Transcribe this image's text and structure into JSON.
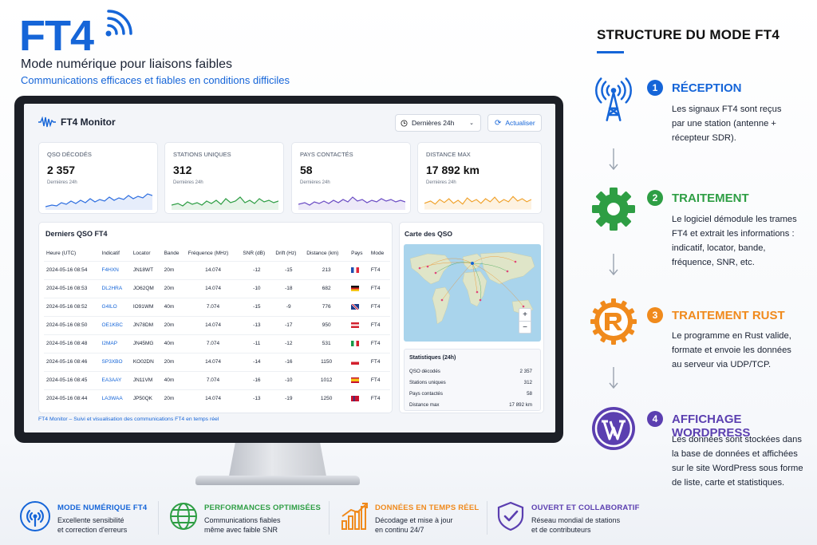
{
  "header": {
    "logo": "FT4",
    "subtitle": "Mode numérique pour liaisons faibles",
    "tagline": "Communications efficaces et fiables en conditions difficiles"
  },
  "structure": {
    "title": "STRUCTURE DU MODE FT4",
    "steps": [
      {
        "num": "1",
        "title": "RÉCEPTION",
        "color": "#1565d8",
        "icon": "antenna-tower-icon",
        "lines": [
          "Les signaux FT4 sont reçus",
          "par une station (antenne +",
          "récepteur SDR)."
        ]
      },
      {
        "num": "2",
        "title": "TRAITEMENT",
        "color": "#2e9e44",
        "icon": "gear-icon",
        "lines": [
          "Le logiciel démodule les trames",
          "FT4 et extrait les informations :",
          "indicatif, locator, bande,",
          "fréquence, SNR, etc."
        ]
      },
      {
        "num": "3",
        "title": "TRAITEMENT RUST",
        "color": "#f08a1c",
        "icon": "rust-logo-icon",
        "lines": [
          "Le programme en Rust valide,",
          "formate et envoie les données",
          "au serveur via UDP/TCP."
        ]
      },
      {
        "num": "4",
        "title": "AFFICHAGE WORDPRESS",
        "color": "#5b3fb0",
        "icon": "wordpress-logo-icon",
        "lines": [
          "Les données sont stockées dans",
          "la base de données et affichées",
          "sur le site WordPress sous forme",
          "de liste, carte et statistiques."
        ]
      }
    ]
  },
  "app": {
    "title": "FT4 Monitor",
    "period": "Dernières 24h",
    "refresh": "Actualiser",
    "kpis": [
      {
        "label": "QSO DÉCODÉS",
        "value": "2 357",
        "sub": "Dernières 24h",
        "color": "#2f6fe0"
      },
      {
        "label": "STATIONS UNIQUES",
        "value": "312",
        "sub": "Dernières 24h",
        "color": "#2e9e44"
      },
      {
        "label": "PAYS CONTACTÉS",
        "value": "58",
        "sub": "Dernières 24h",
        "color": "#6a4bc4"
      },
      {
        "label": "DISTANCE MAX",
        "value": "17 892 km",
        "sub": "Dernières 24h",
        "color": "#f0a12a"
      }
    ],
    "table": {
      "title": "Derniers QSO FT4",
      "columns": [
        "Heure (UTC)",
        "Indicatif",
        "Locator",
        "Bande",
        "Fréquence (MHz)",
        "SNR (dB)",
        "Drift (Hz)",
        "Distance (km)",
        "Pays",
        "Mode"
      ],
      "rows": [
        {
          "time": "2024-05-16 08:54",
          "call": "F4HXN",
          "loc": "JN18WT",
          "band": "20m",
          "freq": "14.074",
          "snr": "-12",
          "drift": "-15",
          "dist": "213",
          "flag": "fr",
          "mode": "FT4"
        },
        {
          "time": "2024-05-16 08:53",
          "call": "DL2HRA",
          "loc": "JO62QM",
          "band": "20m",
          "freq": "14.074",
          "snr": "-10",
          "drift": "-18",
          "dist": "682",
          "flag": "de",
          "mode": "FT4"
        },
        {
          "time": "2024-05-16 08:52",
          "call": "G4ILO",
          "loc": "IO91WM",
          "band": "40m",
          "freq": "7.074",
          "snr": "-15",
          "drift": "-9",
          "dist": "776",
          "flag": "gb",
          "mode": "FT4"
        },
        {
          "time": "2024-05-16 08:50",
          "call": "OE1KBC",
          "loc": "JN78DM",
          "band": "20m",
          "freq": "14.074",
          "snr": "-13",
          "drift": "-17",
          "dist": "950",
          "flag": "at",
          "mode": "FT4"
        },
        {
          "time": "2024-05-16 08:48",
          "call": "I2MAP",
          "loc": "JN45MG",
          "band": "40m",
          "freq": "7.074",
          "snr": "-11",
          "drift": "-12",
          "dist": "531",
          "flag": "it",
          "mode": "FT4"
        },
        {
          "time": "2024-05-16 08:46",
          "call": "SP3XBO",
          "loc": "KO02DN",
          "band": "20m",
          "freq": "14.074",
          "snr": "-14",
          "drift": "-16",
          "dist": "1150",
          "flag": "pl",
          "mode": "FT4"
        },
        {
          "time": "2024-05-16 08:45",
          "call": "EA3AAY",
          "loc": "JN11VM",
          "band": "40m",
          "freq": "7.074",
          "snr": "-16",
          "drift": "-10",
          "dist": "1012",
          "flag": "es",
          "mode": "FT4"
        },
        {
          "time": "2024-05-16 08:44",
          "call": "LA3WAA",
          "loc": "JP50QK",
          "band": "20m",
          "freq": "14.074",
          "snr": "-13",
          "drift": "-19",
          "dist": "1250",
          "flag": "no",
          "mode": "FT4"
        }
      ]
    },
    "map": {
      "title": "Carte des QSO",
      "zoom_in": "+",
      "zoom_out": "−"
    },
    "stats": {
      "title": "Statistiques (24h)",
      "rows": [
        {
          "label": "QSO décodés",
          "value": "2 357"
        },
        {
          "label": "Stations uniques",
          "value": "312"
        },
        {
          "label": "Pays contactés",
          "value": "58"
        },
        {
          "label": "Distance max",
          "value": "17 892 km"
        }
      ]
    },
    "footer": "FT4 Monitor – Suivi et visualisation des communications FT4 en temps réel"
  },
  "features": [
    {
      "title": "MODE NUMÉRIQUE FT4",
      "color": "#1565d8",
      "icon": "broadcast-icon",
      "lines": [
        "Excellente sensibilité",
        "et correction d'erreurs"
      ]
    },
    {
      "title": "PERFORMANCES OPTIMISÉES",
      "color": "#2e9e44",
      "icon": "globe-icon",
      "lines": [
        "Communications fiables",
        "même avec faible SNR"
      ]
    },
    {
      "title": "DONNÉES EN TEMPS RÉEL",
      "color": "#f08a1c",
      "icon": "bar-chart-icon",
      "lines": [
        "Décodage et mise à jour",
        "en continu 24/7"
      ]
    },
    {
      "title": "OUVERT ET COLLABORATIF",
      "color": "#5b3fb0",
      "icon": "shield-check-icon",
      "lines": [
        "Réseau mondial de stations",
        "et de contributeurs"
      ]
    }
  ]
}
